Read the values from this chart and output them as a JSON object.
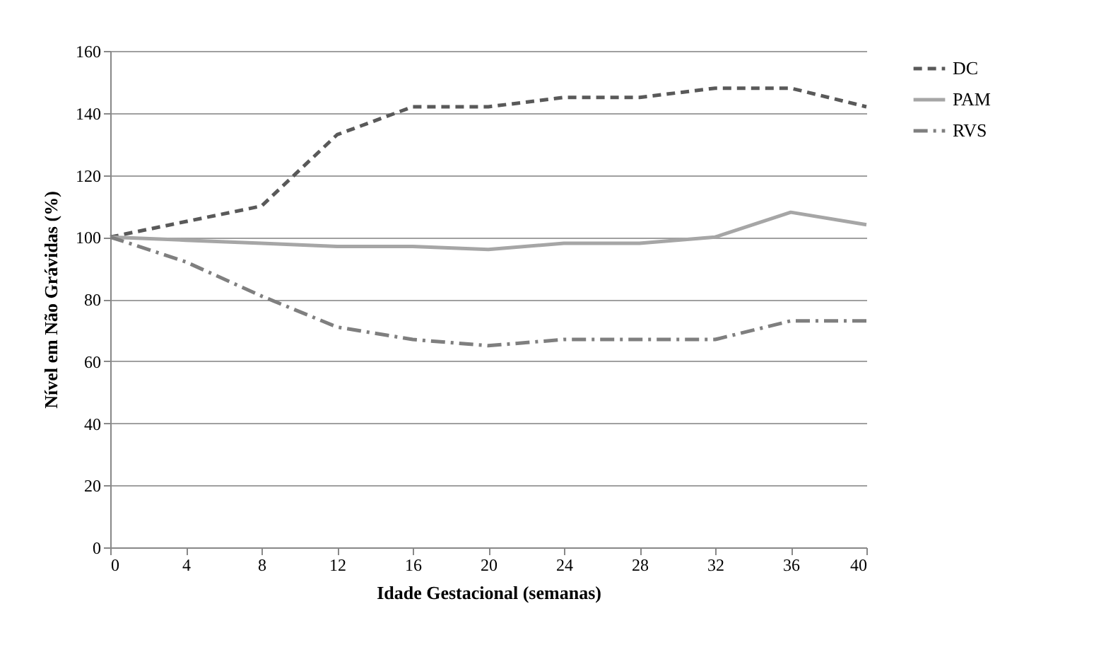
{
  "chart_data": {
    "type": "line",
    "xlabel": "Idade Gestacional (semanas)",
    "ylabel": "Nível em Não Grávidas (%)",
    "x": [
      0,
      4,
      8,
      12,
      16,
      20,
      24,
      28,
      32,
      36,
      40
    ],
    "xlim": [
      0,
      40
    ],
    "xticks": [
      0,
      4,
      8,
      12,
      16,
      20,
      24,
      28,
      32,
      36,
      40
    ],
    "ylim": [
      0,
      160
    ],
    "yticks": [
      0,
      20,
      40,
      60,
      80,
      100,
      120,
      140,
      160
    ],
    "grid": "y",
    "legend": "right",
    "marker": "none",
    "series": [
      {
        "name": "DC",
        "color": "#595959",
        "line_style": "dashed",
        "values": [
          100,
          105,
          110,
          133,
          142,
          142,
          145,
          145,
          148,
          148,
          142
        ]
      },
      {
        "name": "PAM",
        "color": "#a6a6a6",
        "line_style": "solid",
        "values": [
          100,
          99,
          98,
          97,
          97,
          96,
          98,
          98,
          100,
          108,
          104
        ]
      },
      {
        "name": "RVS",
        "color": "#7f7f7f",
        "line_style": "dashdot",
        "values": [
          100,
          92,
          81,
          71,
          67,
          65,
          67,
          67,
          67,
          73,
          73
        ]
      }
    ]
  }
}
